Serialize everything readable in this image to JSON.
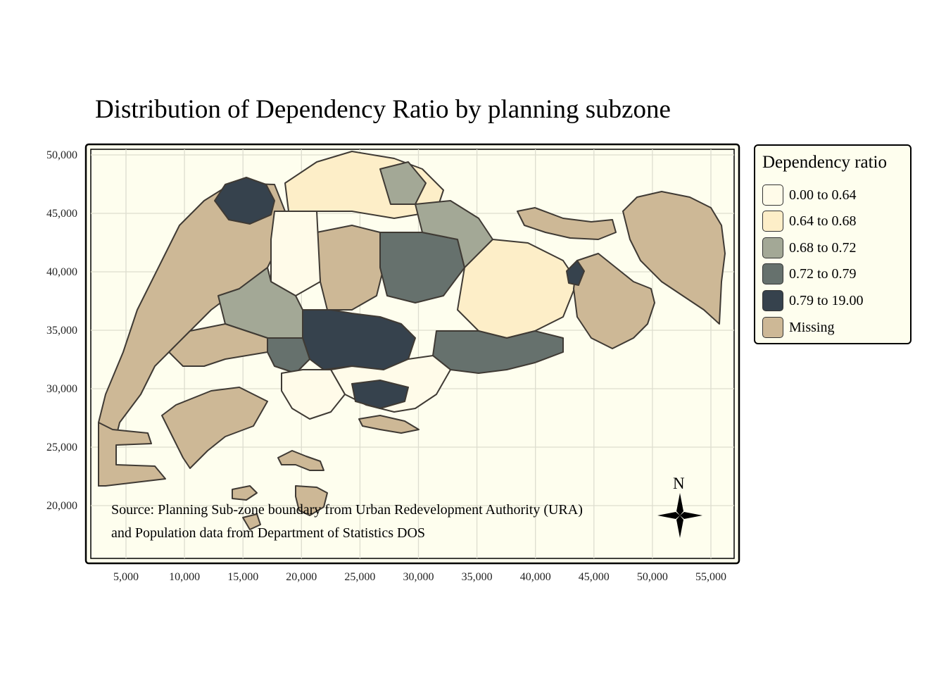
{
  "title": "Distribution of Dependency Ratio by planning subzone",
  "map": {
    "background_color": "#fefeee",
    "grid": true,
    "x_ticks": [
      "5,000",
      "10,000",
      "15,000",
      "20,000",
      "25,000",
      "30,000",
      "35,000",
      "40,000",
      "45,000",
      "50,000",
      "55,000"
    ],
    "y_ticks": [
      "50,000",
      "45,000",
      "40,000",
      "35,000",
      "30,000",
      "25,000",
      "20,000"
    ],
    "compass_label": "N",
    "source_lines": [
      "Source: Planning Sub-zone boundary from Urban Redevelopment Authority (URA)",
      " and Population data from Department of Statistics DOS"
    ]
  },
  "legend": {
    "title": "Dependency ratio",
    "items": [
      {
        "label": "0.00 to 0.64",
        "color": "#fffbe9"
      },
      {
        "label": "0.64 to 0.68",
        "color": "#fdeec8"
      },
      {
        "label": "0.68 to 0.72",
        "color": "#a3a896"
      },
      {
        "label": "0.72 to 0.79",
        "color": "#66716d"
      },
      {
        "label": "0.79 to 19.00",
        "color": "#36424d"
      },
      {
        "label": "Missing",
        "color": "#cdb896"
      }
    ]
  }
}
